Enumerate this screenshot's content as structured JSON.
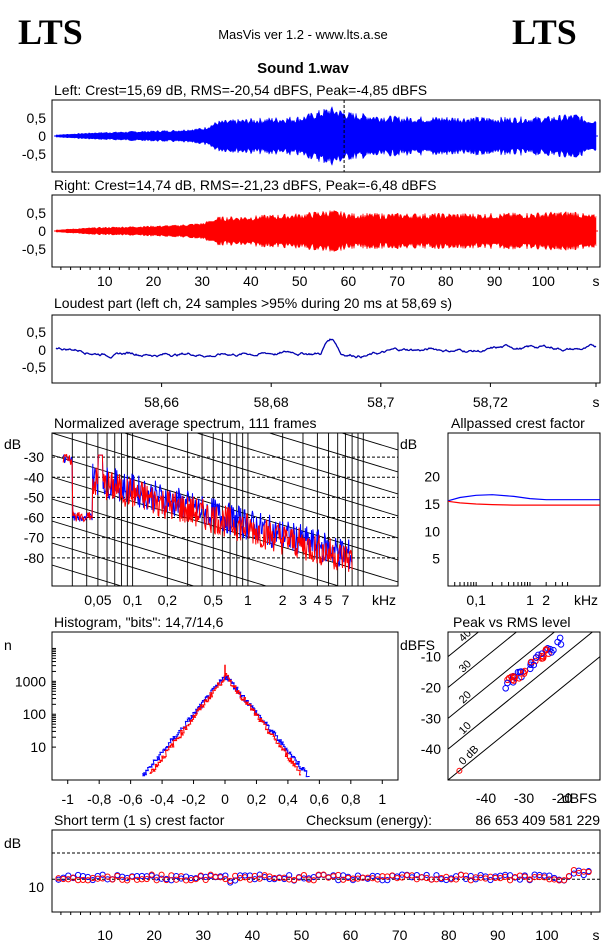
{
  "header": {
    "logo_left": "LTS",
    "logo_right": "LTS",
    "app": "MasVis ver 1.2 - www.lts.a.se",
    "file": "Sound 1.wav"
  },
  "colors": {
    "left": "#0000ff",
    "right": "#ff0000",
    "low": "#0000b0"
  },
  "chart_data": [
    {
      "type": "area",
      "title": "Left: Crest=15,69 dB, RMS=-20,54 dBFS, Peak=-4,85 dBFS",
      "yticks": [
        "0,5",
        "0",
        "-0,5"
      ],
      "ylim": [
        -1,
        1
      ],
      "xlim": [
        0,
        110
      ],
      "marker_x": 58.69,
      "envelope": [
        [
          0,
          0.02
        ],
        [
          8,
          0.06
        ],
        [
          16,
          0.08
        ],
        [
          24,
          0.1
        ],
        [
          30,
          0.14
        ],
        [
          33,
          0.26
        ],
        [
          40,
          0.3
        ],
        [
          50,
          0.34
        ],
        [
          56,
          0.5
        ],
        [
          60,
          0.4
        ],
        [
          70,
          0.33
        ],
        [
          80,
          0.33
        ],
        [
          90,
          0.32
        ],
        [
          100,
          0.33
        ],
        [
          106,
          0.38
        ],
        [
          108,
          0.3
        ],
        [
          110,
          0.3
        ]
      ]
    },
    {
      "type": "area",
      "title": "Right: Crest=14,74 dB, RMS=-21,23 dBFS, Peak=-6,48 dBFS",
      "yticks": [
        "0,5",
        "0",
        "-0,5"
      ],
      "ylim": [
        -1,
        1
      ],
      "xlim": [
        0,
        110
      ],
      "xticks": [
        "10",
        "20",
        "30",
        "40",
        "50",
        "60",
        "70",
        "80",
        "90",
        "100",
        "s"
      ],
      "envelope": [
        [
          0,
          0.02
        ],
        [
          8,
          0.06
        ],
        [
          16,
          0.08
        ],
        [
          24,
          0.1
        ],
        [
          30,
          0.14
        ],
        [
          33,
          0.24
        ],
        [
          40,
          0.26
        ],
        [
          50,
          0.3
        ],
        [
          56,
          0.36
        ],
        [
          60,
          0.3
        ],
        [
          70,
          0.3
        ],
        [
          80,
          0.3
        ],
        [
          90,
          0.3
        ],
        [
          100,
          0.32
        ],
        [
          106,
          0.34
        ],
        [
          108,
          0.28
        ],
        [
          110,
          0.28
        ]
      ]
    },
    {
      "type": "line",
      "title": "Loudest part (left  ch, 24 samples >95% during 20 ms at 58,69 s)",
      "yticks": [
        "0,5",
        "0",
        "-0,5"
      ],
      "xticks": [
        "58,66",
        "58,68",
        "58,7",
        "58,72",
        "s"
      ],
      "xtick_values": [
        58.66,
        58.68,
        58.7,
        58.72
      ],
      "xlim": [
        58.64,
        58.74
      ],
      "ylim": [
        -1,
        1
      ]
    },
    {
      "type": "line",
      "title": "Normalized average spectrum, 111 frames",
      "ylabel": "dB",
      "yticks": [
        "-30",
        "-40",
        "-50",
        "-60",
        "-70",
        "-80"
      ],
      "ytick_values": [
        -30,
        -40,
        -50,
        -60,
        -70,
        -80
      ],
      "xticks": [
        "0,05",
        "0,1",
        "0,2",
        "0,5",
        "1",
        "2",
        "3",
        "4",
        "5",
        "7",
        "kHz"
      ],
      "xtick_values": [
        0.05,
        0.1,
        0.2,
        0.5,
        1,
        2,
        3,
        4,
        5,
        7
      ],
      "xlim": [
        0.02,
        20
      ],
      "ylim": [
        -94,
        -18
      ]
    },
    {
      "type": "line",
      "title": "Allpassed crest factor",
      "ylabel": "dB",
      "yticks": [
        "20",
        "15",
        "10",
        "5"
      ],
      "ytick_values": [
        20,
        15,
        10,
        5
      ],
      "xticks": [
        "0,1",
        "1",
        "2",
        "kHz"
      ],
      "xtick_values": [
        0.1,
        1,
        2
      ],
      "xlim": [
        0.03,
        20
      ],
      "ylim": [
        0,
        28
      ],
      "series": [
        {
          "color": "blue",
          "x": [
            0.03,
            0.05,
            0.1,
            0.2,
            0.5,
            1,
            2,
            5,
            20
          ],
          "y": [
            15.6,
            16.2,
            16.6,
            16.7,
            16.4,
            16.0,
            15.8,
            15.8,
            15.8
          ]
        },
        {
          "color": "red",
          "x": [
            0.03,
            0.05,
            0.1,
            0.2,
            0.5,
            1,
            2,
            5,
            20
          ],
          "y": [
            15.5,
            15.2,
            15.0,
            14.9,
            14.8,
            14.8,
            14.8,
            14.8,
            14.8
          ]
        }
      ]
    },
    {
      "type": "bar",
      "title": "Histogram, \"bits\": 14,7/14,6",
      "ylabel": "n",
      "yticks": [
        "1000",
        "100",
        "10"
      ],
      "ytick_values": [
        1000,
        100,
        10
      ],
      "xticks": [
        "-1",
        "-0,8",
        "-0,6",
        "-0,4",
        "-0,2",
        "0",
        "0,2",
        "0,4",
        "0,6",
        "0,8",
        "1"
      ],
      "xtick_values": [
        -1,
        -0.8,
        -0.6,
        -0.4,
        -0.2,
        0,
        0.2,
        0.4,
        0.6,
        0.8,
        1
      ],
      "xlim": [
        -1.1,
        1.1
      ],
      "ylim_log10": [
        0,
        4.5
      ]
    },
    {
      "type": "scatter",
      "title": "Peak vs RMS level",
      "ylabel": "dBFS",
      "xlabel": "dBFS",
      "yticks": [
        "-10",
        "-20",
        "-30",
        "-40"
      ],
      "ytick_values": [
        -10,
        -20,
        -30,
        -40
      ],
      "xticks": [
        "-40",
        "-30",
        "-20"
      ],
      "xtick_values": [
        -40,
        -30,
        -20
      ],
      "xlim": [
        -50,
        -10
      ],
      "ylim": [
        -50,
        -2
      ],
      "crest_labels": [
        "40",
        "30",
        "20",
        "10",
        "0 dB"
      ],
      "crest_values": [
        40,
        30,
        20,
        10,
        0
      ]
    },
    {
      "type": "scatter",
      "title": "Short term (1 s) crest factor",
      "checksum_label": "Checksum (energy):",
      "checksum_value": "86 653 409 581 229",
      "ylabel": "dB",
      "yticks": [
        "10"
      ],
      "ytick_values": [
        10
      ],
      "xticks": [
        "10",
        "20",
        "30",
        "40",
        "50",
        "60",
        "70",
        "80",
        "90",
        "100",
        "s"
      ],
      "xlim": [
        0,
        110
      ],
      "ylim": [
        0,
        25
      ]
    }
  ]
}
